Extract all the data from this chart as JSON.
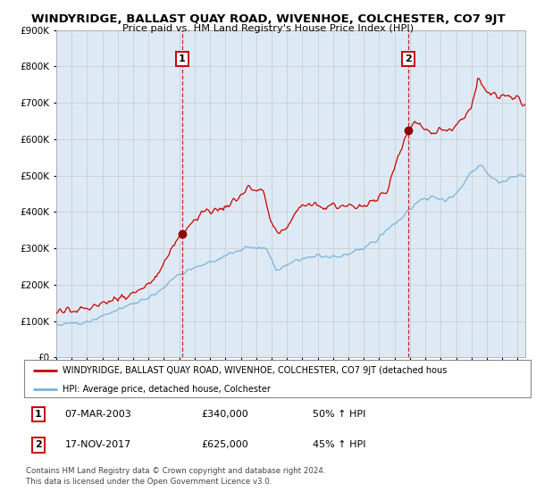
{
  "title": "WINDYRIDGE, BALLAST QUAY ROAD, WIVENHOE, COLCHESTER, CO7 9JT",
  "subtitle": "Price paid vs. HM Land Registry's House Price Index (HPI)",
  "legend_line1": "WINDYRIDGE, BALLAST QUAY ROAD, WIVENHOE, COLCHESTER, CO7 9JT (detached hous",
  "legend_line2": "HPI: Average price, detached house, Colchester",
  "annotation1_date": "07-MAR-2003",
  "annotation1_price": "£340,000",
  "annotation1_hpi": "50% ↑ HPI",
  "annotation2_date": "17-NOV-2017",
  "annotation2_price": "£625,000",
  "annotation2_hpi": "45% ↑ HPI",
  "footer1": "Contains HM Land Registry data © Crown copyright and database right 2024.",
  "footer2": "This data is licensed under the Open Government Licence v3.0.",
  "hpi_color": "#7ab3d9",
  "price_color": "#cc0000",
  "background_color": "#ddeaf5",
  "grid_color": "#c8c8c8",
  "ylim": [
    0,
    900000
  ],
  "yticks": [
    0,
    100000,
    200000,
    300000,
    400000,
    500000,
    600000,
    700000,
    800000,
    900000
  ],
  "sale1_x": 2003.18,
  "sale1_y": 340000,
  "sale2_x": 2017.88,
  "sale2_y": 625000,
  "vline1_x": 2003.18,
  "vline2_x": 2017.88,
  "xmin": 1995.0,
  "xmax": 2025.5
}
